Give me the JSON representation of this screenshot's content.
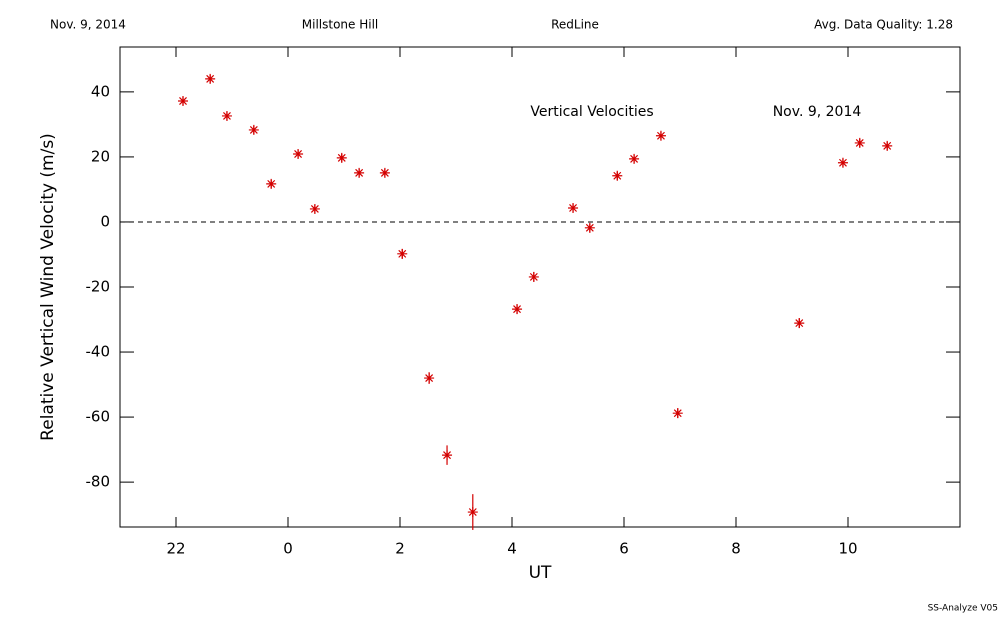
{
  "chart_data": {
    "type": "scatter",
    "header": [
      "Nov. 9, 2014",
      "Millstone Hill",
      "RedLine",
      "Avg. Data Quality: 1.28"
    ],
    "annotations": [
      "Vertical Velocities",
      "Nov. 9, 2014"
    ],
    "footer": "SS-Analyze V05",
    "x_label": "UT",
    "y_label": "Relative Vertical Wind Velocity (m/s)",
    "color": "#d40000",
    "x": [
      -1.875,
      -1.39,
      -1.09,
      -0.61,
      -0.3,
      0.18,
      0.48,
      0.96,
      1.27,
      1.73,
      2.04,
      2.52,
      2.84,
      3.3,
      4.09,
      4.39,
      5.09,
      5.39,
      5.88,
      6.18,
      6.66,
      6.96,
      9.13,
      9.91,
      10.21,
      10.7
    ],
    "values": [
      37.2,
      44,
      32.6,
      28.3,
      11.7,
      20.9,
      4,
      19.7,
      15.1,
      15.1,
      -9.8,
      -48,
      -71.7,
      -89.2,
      -26.8,
      -16.9,
      4.3,
      -1.8,
      14.2,
      19.4,
      26.5,
      -58.8,
      -31.1,
      18.2,
      24.3,
      23.4
    ],
    "errors": [
      1.2,
      1.2,
      1.2,
      1.2,
      1.2,
      1.2,
      1.2,
      1.2,
      1.2,
      1.2,
      1.5,
      1.8,
      3,
      5.5,
      1.5,
      1.5,
      1.2,
      1.2,
      1.2,
      1.2,
      1.2,
      1.5,
      1.5,
      1.2,
      1.2,
      1.2
    ],
    "xlim": [
      -3,
      12
    ],
    "ylim": [
      -93.8,
      53.8
    ],
    "xticks": [
      {
        "value": -2,
        "label": "22"
      },
      0,
      2,
      4,
      6,
      8,
      10
    ],
    "yticks": [
      -80,
      -60,
      -40,
      -20,
      0,
      20,
      40
    ],
    "hline": 0
  }
}
